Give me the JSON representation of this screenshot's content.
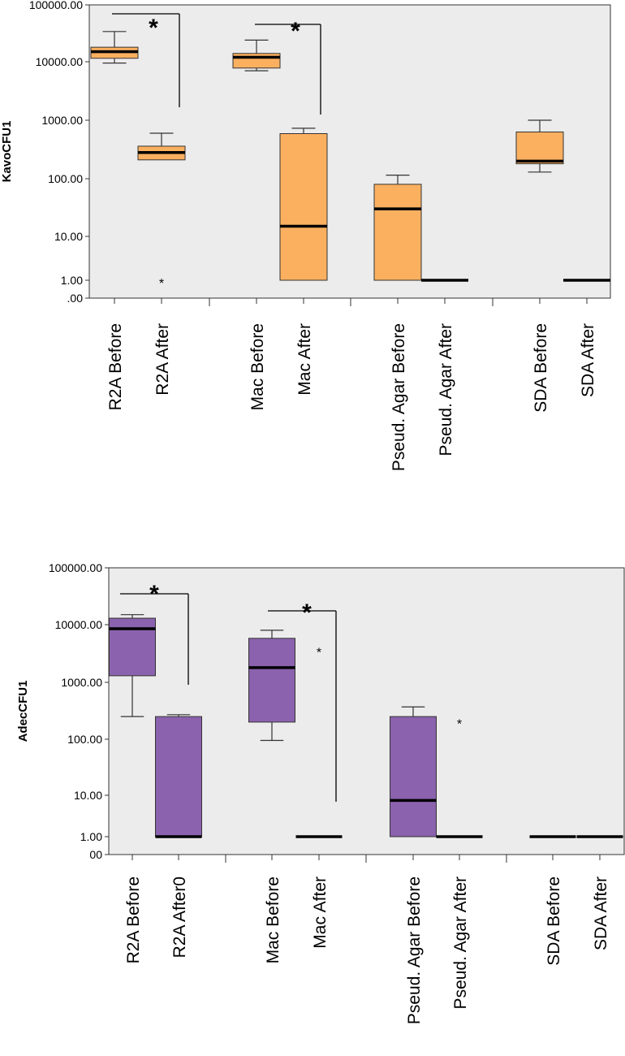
{
  "chart_data": [
    {
      "type": "boxplot",
      "ylabel": "KavoCFU1",
      "y_scale": "log",
      "y_ticks": [
        "100000.00",
        "10000.00",
        "1000.00",
        "100.00",
        "10.00",
        "1.00",
        ".00"
      ],
      "box_color": "#fbb060",
      "categories": [
        "R2A Before",
        "R2A After",
        "Mac Before",
        "Mac After",
        "Pseud. Agar Before",
        "Pseud. Agar After",
        "SDA Before",
        "SDA After"
      ],
      "boxes": [
        {
          "min": 9500,
          "q1": 11500,
          "median": 15000,
          "q3": 18000,
          "max": 34000
        },
        {
          "min": 210,
          "q1": 210,
          "median": 280,
          "q3": 360,
          "max": 600
        },
        {
          "min": 7000,
          "q1": 7800,
          "median": 12000,
          "q3": 14000,
          "max": 24000
        },
        {
          "min": 1,
          "q1": 1,
          "median": 15,
          "q3": 590,
          "max": 730
        },
        {
          "min": 1,
          "q1": 1,
          "median": 30,
          "q3": 80,
          "max": 115
        },
        {
          "min": 1,
          "q1": 1,
          "median": 1,
          "q3": 1,
          "max": 1
        },
        {
          "min": 130,
          "q1": 180,
          "median": 200,
          "q3": 630,
          "max": 1000
        },
        {
          "min": 1,
          "q1": 1,
          "median": 1,
          "q3": 1,
          "max": 1
        }
      ],
      "outliers": [
        {
          "category": 1,
          "value": 1,
          "symbol": "*"
        }
      ],
      "significance": [
        {
          "from": 0,
          "to": 1,
          "label": "*"
        },
        {
          "from": 2,
          "to": 3,
          "label": "*"
        }
      ]
    },
    {
      "type": "boxplot",
      "ylabel": "AdecCFU1",
      "y_scale": "log",
      "y_ticks": [
        "100000.00",
        "10000.00",
        "1000.00",
        "100.00",
        "10.00",
        "1.00",
        "00"
      ],
      "box_color": "#8b62ad",
      "categories": [
        "R2A Before",
        "R2A After0",
        "Mac Before",
        "Mac After",
        "Pseud. Agar Before",
        "Pseud. Agar After",
        "SDA Before",
        "SDA After"
      ],
      "boxes": [
        {
          "min": 250,
          "q1": 1300,
          "median": 8500,
          "q3": 13000,
          "max": 15000
        },
        {
          "min": 1,
          "q1": 1,
          "median": 1,
          "q3": 250,
          "max": 270
        },
        {
          "min": 95,
          "q1": 200,
          "median": 1800,
          "q3": 5800,
          "max": 8000
        },
        {
          "min": 1,
          "q1": 1,
          "median": 1,
          "q3": 1,
          "max": 1
        },
        {
          "min": 1,
          "q1": 1,
          "median": 7.5,
          "q3": 250,
          "max": 370
        },
        {
          "min": 1,
          "q1": 1,
          "median": 1,
          "q3": 1,
          "max": 1
        },
        {
          "min": 1,
          "q1": 1,
          "median": 1,
          "q3": 1,
          "max": 1
        },
        {
          "min": 1,
          "q1": 1,
          "median": 1,
          "q3": 1,
          "max": 1
        }
      ],
      "outliers": [
        {
          "category": 3,
          "value": 3700,
          "symbol": "*"
        },
        {
          "category": 5,
          "value": 210,
          "symbol": "*"
        }
      ],
      "significance": [
        {
          "from": 0,
          "to": 1,
          "label": "*"
        },
        {
          "from": 2,
          "to": 3,
          "label": "*"
        }
      ]
    }
  ]
}
